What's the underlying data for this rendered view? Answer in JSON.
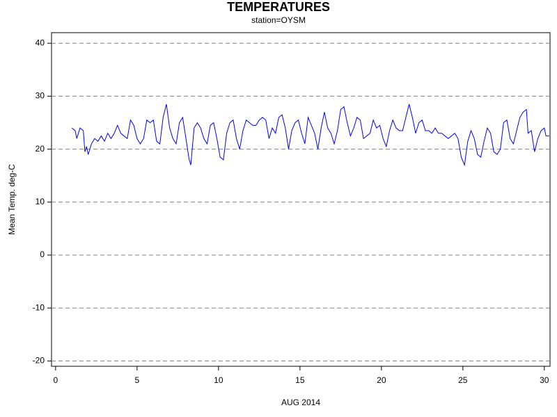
{
  "chart_data": {
    "type": "line",
    "title": "TEMPERATURES",
    "subtitle": "station=OYSM",
    "x_label": "AUG 2014",
    "y_label": "Mean Temp. deg-C",
    "xlim": [
      -0.25,
      30.35
    ],
    "ylim": [
      -21,
      42
    ],
    "xticks": [
      0,
      5,
      10,
      15,
      20,
      25,
      30
    ],
    "yticks": [
      -20,
      -10,
      0,
      10,
      20,
      30,
      40
    ],
    "grid": true,
    "series": [
      {
        "color": "#0000ff",
        "x": [
          1.0,
          1.2,
          1.3,
          1.5,
          1.7,
          1.8,
          1.9,
          2.0,
          2.2,
          2.4,
          2.6,
          2.8,
          3.0,
          3.2,
          3.4,
          3.6,
          3.8,
          4.0,
          4.2,
          4.4,
          4.6,
          4.8,
          5.0,
          5.2,
          5.4,
          5.6,
          5.8,
          6.0,
          6.2,
          6.4,
          6.6,
          6.8,
          7.0,
          7.2,
          7.4,
          7.6,
          7.8,
          8.0,
          8.2,
          8.3,
          8.5,
          8.7,
          8.9,
          9.1,
          9.3,
          9.5,
          9.7,
          9.9,
          10.1,
          10.3,
          10.5,
          10.7,
          10.9,
          11.1,
          11.3,
          11.5,
          11.7,
          11.9,
          12.1,
          12.3,
          12.5,
          12.7,
          12.9,
          13.1,
          13.3,
          13.5,
          13.7,
          13.9,
          14.1,
          14.3,
          14.5,
          14.7,
          14.9,
          15.1,
          15.3,
          15.5,
          15.7,
          15.9,
          16.1,
          16.3,
          16.5,
          16.7,
          16.9,
          17.1,
          17.3,
          17.5,
          17.7,
          17.9,
          18.1,
          18.3,
          18.5,
          18.7,
          18.9,
          19.1,
          19.3,
          19.5,
          19.7,
          19.9,
          20.1,
          20.3,
          20.5,
          20.7,
          20.9,
          21.1,
          21.3,
          21.5,
          21.7,
          21.9,
          22.1,
          22.3,
          22.5,
          22.7,
          22.9,
          23.1,
          23.3,
          23.5,
          23.7,
          23.9,
          24.1,
          24.3,
          24.5,
          24.7,
          24.9,
          25.1,
          25.3,
          25.5,
          25.7,
          25.9,
          26.1,
          26.3,
          26.5,
          26.7,
          26.9,
          27.1,
          27.3,
          27.5,
          27.7,
          27.9,
          28.1,
          28.3,
          28.5,
          28.7,
          28.9,
          29.0,
          29.2,
          29.4,
          29.6,
          29.8,
          30.0,
          30.1,
          30.3
        ],
        "values": [
          24,
          23.5,
          22,
          24,
          23.5,
          19.5,
          20.5,
          19,
          21,
          22,
          21.5,
          22.5,
          21.5,
          23,
          22,
          23,
          24.5,
          23,
          22.5,
          22,
          25.5,
          24.5,
          22,
          21,
          22,
          25.5,
          25,
          25.5,
          21.5,
          21,
          26,
          28.5,
          24,
          22,
          21,
          25,
          26,
          22,
          18,
          17,
          24,
          25,
          24,
          22,
          21,
          24.5,
          25,
          22,
          18.5,
          18,
          23,
          25,
          25.5,
          22,
          20,
          23.5,
          25.5,
          25,
          24.5,
          24.5,
          25.5,
          26,
          25.5,
          22,
          24,
          23,
          26,
          26.5,
          24,
          20,
          23.5,
          25,
          25.5,
          23,
          21,
          26,
          24.5,
          23,
          20,
          24,
          27,
          24,
          23,
          21,
          23.5,
          27.5,
          28,
          25,
          22.5,
          24,
          26,
          25.5,
          22,
          22.5,
          23,
          25.5,
          24,
          24.5,
          22,
          20.5,
          23.5,
          25.5,
          24,
          23.5,
          23.5,
          26,
          28.5,
          26,
          23,
          25,
          25.5,
          23.5,
          23.5,
          23,
          24,
          23,
          23,
          22.5,
          22,
          22.5,
          23,
          22,
          18.5,
          17,
          21.5,
          23.5,
          22,
          19,
          18.5,
          21.5,
          24,
          23,
          19.5,
          19,
          20,
          25,
          25.5,
          22,
          21,
          23.5,
          26,
          27,
          27.5,
          23,
          23.5,
          19.5,
          22,
          23.5,
          24,
          22.5,
          22.5
        ]
      }
    ]
  }
}
